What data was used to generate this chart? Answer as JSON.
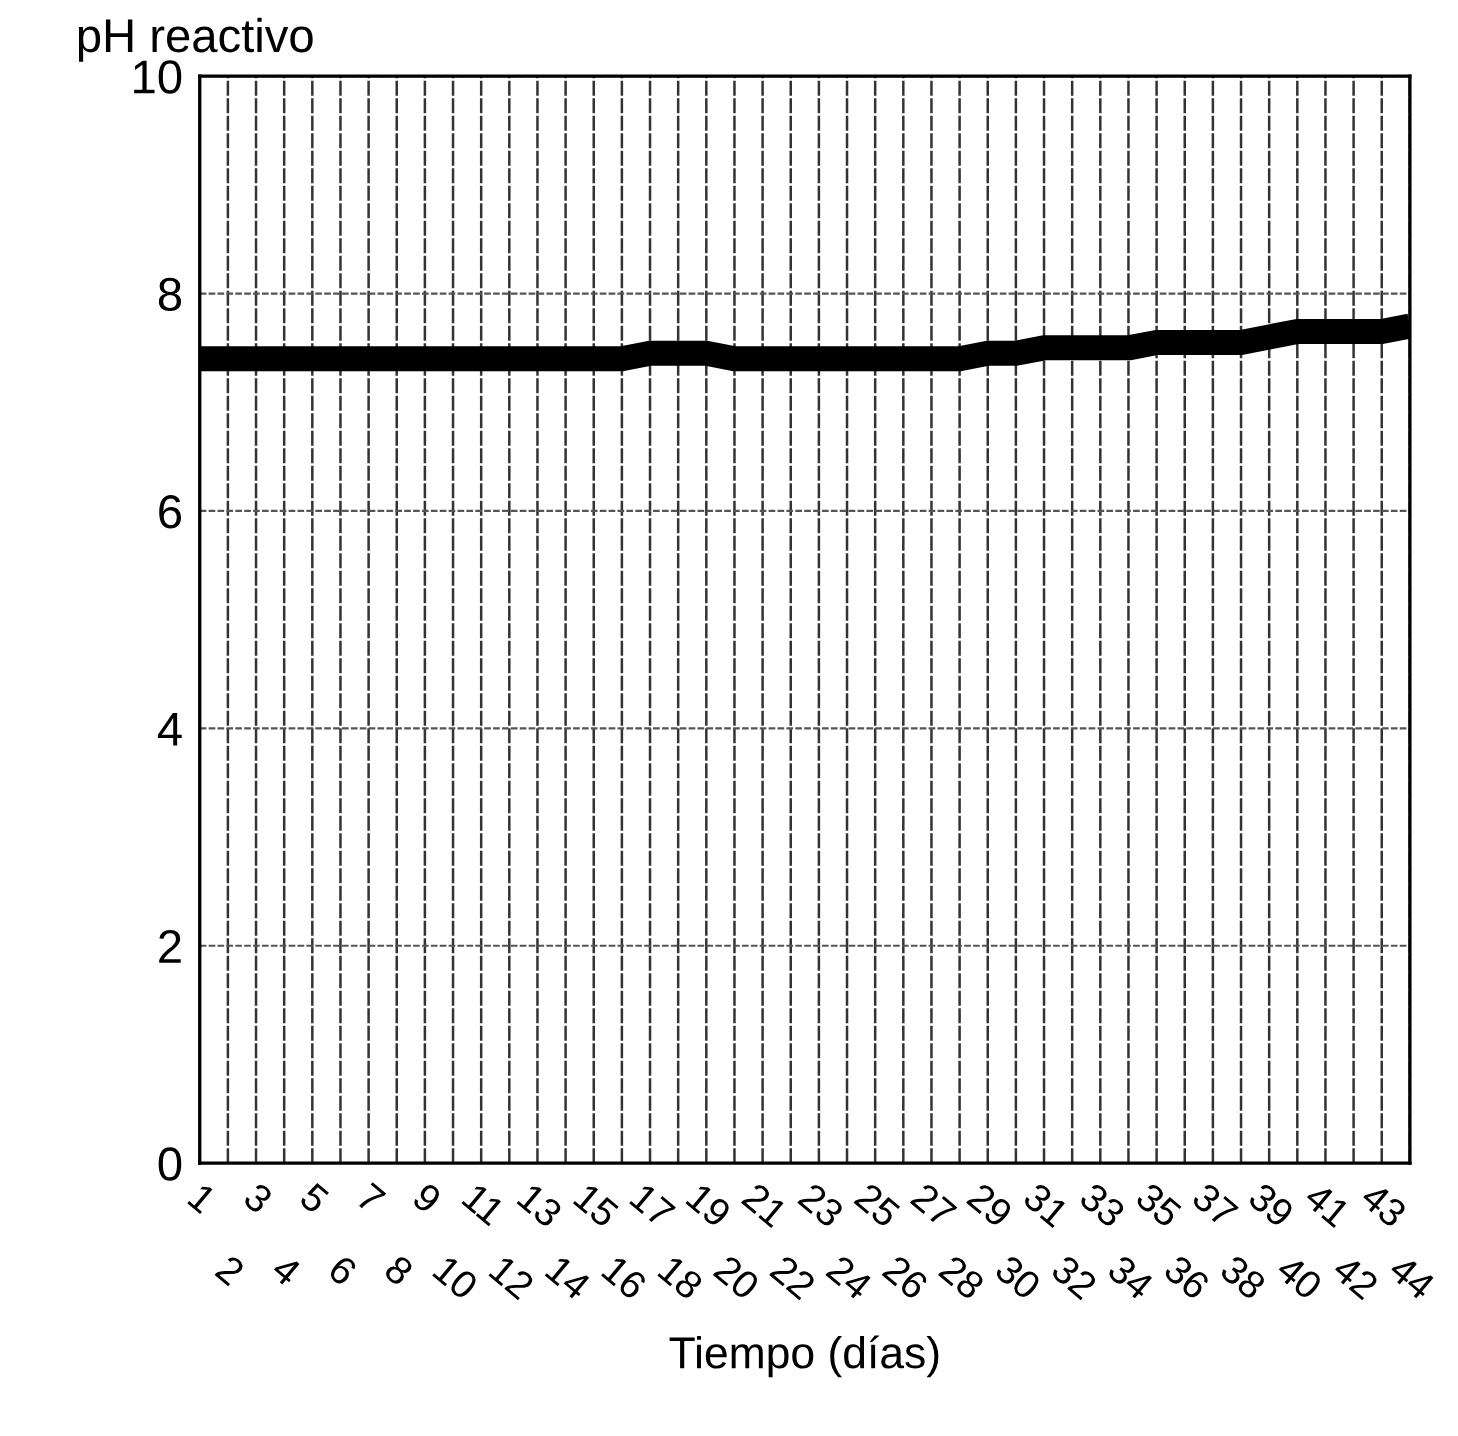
{
  "chart_data": {
    "type": "line",
    "ylabel": "pH reactivo",
    "xlabel": "Tiempo (días)",
    "categories": [
      "1",
      "2",
      "3",
      "4",
      "5",
      "6",
      "7",
      "8",
      "9",
      "10",
      "11",
      "12",
      "13",
      "14",
      "15",
      "16",
      "17",
      "18",
      "19",
      "20",
      "21",
      "22",
      "23",
      "24",
      "25",
      "26",
      "27",
      "28",
      "29",
      "30",
      "31",
      "32",
      "33",
      "34",
      "35",
      "36",
      "37",
      "38",
      "39",
      "40",
      "41",
      "42",
      "43",
      "44"
    ],
    "series": [
      {
        "color": "#000000",
        "values": [
          7.4,
          7.4,
          7.4,
          7.4,
          7.4,
          7.4,
          7.4,
          7.4,
          7.4,
          7.4,
          7.4,
          7.4,
          7.4,
          7.4,
          7.4,
          7.4,
          7.45,
          7.45,
          7.45,
          7.4,
          7.4,
          7.4,
          7.4,
          7.4,
          7.4,
          7.4,
          7.4,
          7.4,
          7.45,
          7.45,
          7.5,
          7.5,
          7.5,
          7.5,
          7.55,
          7.55,
          7.55,
          7.55,
          7.6,
          7.65,
          7.65,
          7.65,
          7.65,
          7.7
        ]
      }
    ],
    "ylim": [
      0,
      10
    ],
    "yticks": [
      0,
      2,
      4,
      6,
      8,
      10
    ],
    "grid": true
  }
}
